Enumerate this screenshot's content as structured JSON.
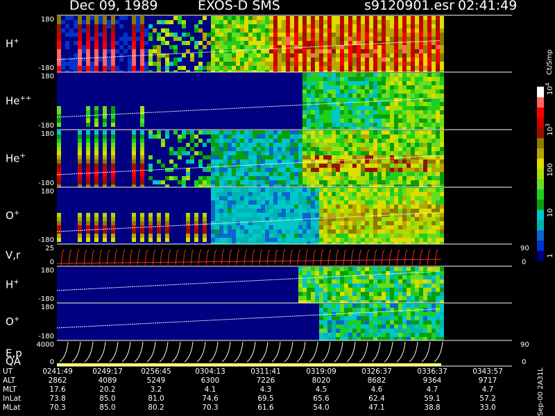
{
  "header": {
    "date": "Dec 09, 1989",
    "instrument": "EXOS-D SMS",
    "file": "s9120901.esr",
    "time": "02:41:49"
  },
  "colorbar": {
    "unit_label": "Ct/Smp",
    "ticks": [
      {
        "label": "1",
        "value": 1
      },
      {
        "label": "10",
        "value": 10
      },
      {
        "label": "100",
        "value": 100
      },
      {
        "label": "10",
        "exp": "3",
        "value": 1000
      },
      {
        "label": "10",
        "exp": "4",
        "value": 10000
      }
    ],
    "colors": [
      "#000080",
      "#0033cc",
      "#0a66cc",
      "#00b3b3",
      "#00c8c8",
      "#0a9f0a",
      "#1fcf1f",
      "#66dd22",
      "#aadd00",
      "#dddd00",
      "#b8a600",
      "#8b7b00",
      "#991100",
      "#cc0000",
      "#ff0000",
      "#ff6666",
      "#ffffff"
    ]
  },
  "footer": {
    "side_label": "Sep-00  2A31L",
    "rows": [
      {
        "label": "UT",
        "values": [
          "0241:49",
          "0249:17",
          "0256:45",
          "0304:13",
          "0311:41",
          "0319:09",
          "0326:37",
          "0336:37",
          "0343:57"
        ]
      },
      {
        "label": "ALT",
        "values": [
          "2862",
          "4089",
          "5249",
          "6300",
          "7226",
          "8020",
          "8682",
          "9364",
          "9717"
        ]
      },
      {
        "label": "MLT",
        "values": [
          "17.6",
          "20.2",
          "3.2",
          "4.1",
          "4.3",
          "4.5",
          "4.6",
          "4.7",
          "4.7"
        ]
      },
      {
        "label": "InLat",
        "values": [
          "73.8",
          "85.0",
          "81.0",
          "74.6",
          "69.5",
          "65.6",
          "62.4",
          "59.1",
          "57.2"
        ]
      },
      {
        "label": "MLat",
        "values": [
          "70.3",
          "85.0",
          "80.2",
          "70.3",
          "61.6",
          "54.0",
          "47.1",
          "38.8",
          "33.0"
        ]
      }
    ]
  },
  "chart_data": {
    "type": "heatmap",
    "title": "Dec 09, 1989   EXOS-D SMS",
    "x_ticks": [
      "0241:49",
      "0249:17",
      "0256:45",
      "0304:13",
      "0311:41",
      "0319:09",
      "0326:37",
      "0336:37",
      "0343:57"
    ],
    "panels": [
      {
        "id": "hplus",
        "species": "H",
        "sup": "+",
        "kind": "spectrogram",
        "ylim": [
          -180,
          180
        ],
        "ytick_labels": [
          "180",
          "-180"
        ],
        "intensity_profile": "strong-early-and-late"
      },
      {
        "id": "heplus2",
        "species": "He",
        "sup": "++",
        "kind": "spectrogram",
        "ylim": [
          -180,
          180
        ],
        "ytick_labels": [
          "180",
          "-180"
        ],
        "intensity_profile": "weak-early-moderate-late"
      },
      {
        "id": "heplus",
        "species": "He",
        "sup": "+",
        "kind": "spectrogram",
        "ylim": [
          -180,
          180
        ],
        "ytick_labels": [
          "180",
          "-180"
        ],
        "intensity_profile": "moderate"
      },
      {
        "id": "oplus",
        "species": "O",
        "sup": "+",
        "kind": "spectrogram",
        "ylim": [
          -180,
          180
        ],
        "ytick_labels": [
          "180",
          "-180"
        ],
        "intensity_profile": "moderate-with-bright-band"
      },
      {
        "id": "vr",
        "species": "V,r",
        "sup": "",
        "kind": "line",
        "ylim": [
          0,
          25
        ],
        "ytick_labels": [
          "25",
          "0"
        ],
        "right_ticks": [
          "90",
          "0"
        ]
      },
      {
        "id": "hplus2",
        "species": "H",
        "sup": "+",
        "kind": "spectrogram",
        "ylim": [
          -180,
          180
        ],
        "ytick_labels": [
          "180",
          "-180"
        ],
        "intensity_profile": "late-only"
      },
      {
        "id": "oplus2",
        "species": "O",
        "sup": "+",
        "kind": "spectrogram",
        "ylim": [
          -180,
          180
        ],
        "ytick_labels": [
          "180",
          "-180"
        ],
        "intensity_profile": "late-only-weak"
      },
      {
        "id": "ep",
        "species": "E,p",
        "sup": "",
        "kind": "sweep",
        "ylim": [
          0,
          4000
        ],
        "ytick_labels": [
          "4000",
          "0"
        ],
        "right_ticks": [
          "90",
          "0"
        ],
        "qa_label": "QA"
      }
    ]
  }
}
